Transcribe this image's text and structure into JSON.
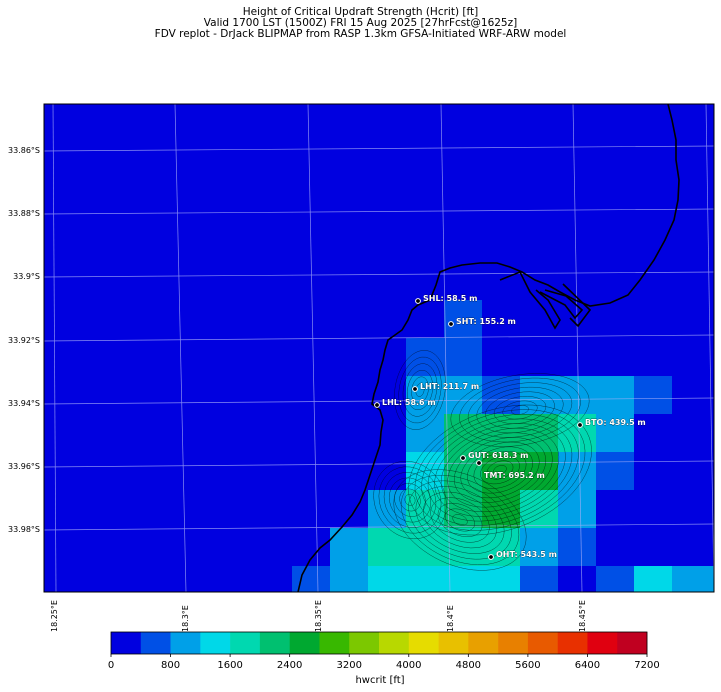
{
  "title": {
    "line1": "Height of Critical Updraft Strength (Hcrit) [ft]",
    "line2": "Valid 1700 LST (1500Z) FRI 15 Aug 2025 [27hrFcst@1625z]",
    "line3": "FDV replot - DrJack BLIPMAP from RASP 1.3km GFSA-Initiated WRF-ARW model"
  },
  "lat_labels": [
    "33.86°S",
    "33.88°S",
    "33.9°S",
    "33.92°S",
    "33.94°S",
    "33.96°S",
    "33.98°S"
  ],
  "lon_labels": [
    "18.25°E",
    "18.3°E",
    "18.35°E",
    "18.4°E",
    "18.45°E"
  ],
  "stations": [
    {
      "code": "SHL",
      "label": "SHL: 58.5 m"
    },
    {
      "code": "SHT",
      "label": "SHT: 155.2 m"
    },
    {
      "code": "LHT",
      "label": "LHT: 211.7 m"
    },
    {
      "code": "LHL",
      "label": "LHL: 58.6 m"
    },
    {
      "code": "BTO",
      "label": "BTO: 439.5 m"
    },
    {
      "code": "GUT",
      "label": "GUT: 618.3 m"
    },
    {
      "code": "TMT",
      "label": "TMT: 695.2 m"
    },
    {
      "code": "OHT",
      "label": "OHT: 543.5 m"
    }
  ],
  "colorbar": {
    "label": "hwcrit [ft]",
    "ticks": [
      "0",
      "800",
      "1600",
      "2400",
      "3200",
      "4000",
      "4800",
      "5600",
      "6400",
      "7200"
    ],
    "colors": [
      "#0000e0",
      "#0050e6",
      "#00a0e8",
      "#00d8e8",
      "#00d8b0",
      "#00c070",
      "#00a830",
      "#38b800",
      "#7cc800",
      "#b8d800",
      "#e6dc00",
      "#e8c000",
      "#e8a000",
      "#e88000",
      "#e85a00",
      "#e83000",
      "#e00010",
      "#c00020"
    ]
  },
  "colors": {
    "background_field": "#0000e0",
    "coastline": "#000000",
    "gridlines": "#aab0f8"
  }
}
